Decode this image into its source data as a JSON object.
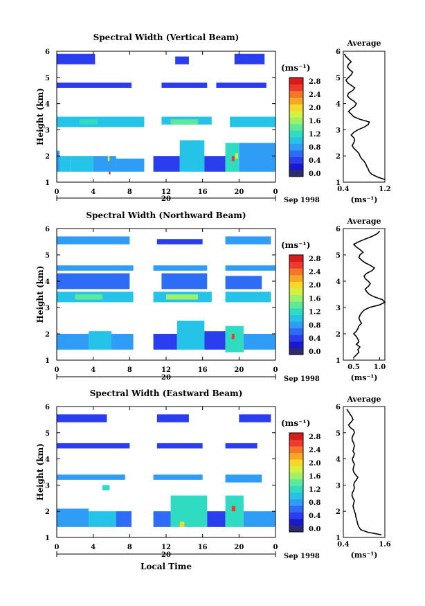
{
  "chart_data": [
    {
      "type": "heatmap",
      "title": "Spectral Width (Vertical Beam)",
      "ylabel": "Height (km)",
      "xlabel": "",
      "x_ticks": [
        "0",
        "4",
        "8",
        "12",
        "16",
        "20",
        "0"
      ],
      "y_ticks": [
        "1",
        "2",
        "3",
        "4",
        "5",
        "6"
      ],
      "xlim": [
        0,
        24
      ],
      "ylim": [
        1,
        6
      ],
      "date_day": "20",
      "date_month": "Sep 1998",
      "gap_hours": [
        9.6,
        10.6
      ],
      "cells": [
        {
          "t": [
            0,
            0.3
          ],
          "h": [
            1.4,
            2.2
          ],
          "v": 0.9
        },
        {
          "t": [
            0.3,
            1.5
          ],
          "h": [
            1.4,
            2.0
          ],
          "v": 1.0
        },
        {
          "t": [
            1.5,
            4.0
          ],
          "h": [
            1.4,
            2.0
          ],
          "v": 1.2
        },
        {
          "t": [
            4.0,
            6.5
          ],
          "h": [
            1.4,
            2.0
          ],
          "v": 0.9
        },
        {
          "t": [
            6.5,
            9.6
          ],
          "h": [
            1.4,
            1.9
          ],
          "v": 0.8
        },
        {
          "t": [
            5.6,
            5.8
          ],
          "h": [
            1.8,
            2.0
          ],
          "v": 1.8
        },
        {
          "t": [
            5.7,
            5.9
          ],
          "h": [
            1.3,
            1.4
          ],
          "v": 2.8
        },
        {
          "t": [
            10.6,
            13.5
          ],
          "h": [
            1.4,
            2.0
          ],
          "v": 0.6
        },
        {
          "t": [
            13.5,
            16.2
          ],
          "h": [
            1.4,
            2.6
          ],
          "v": 1.2
        },
        {
          "t": [
            16.2,
            18.5
          ],
          "h": [
            1.4,
            2.0
          ],
          "v": 0.5
        },
        {
          "t": [
            18.5,
            20.0
          ],
          "h": [
            1.4,
            2.5
          ],
          "v": 1.3
        },
        {
          "t": [
            20.0,
            24.0
          ],
          "h": [
            1.4,
            2.5
          ],
          "v": 0.9
        },
        {
          "t": [
            19.2,
            19.5
          ],
          "h": [
            1.8,
            2.0
          ],
          "v": 2.8
        },
        {
          "t": [
            19.6,
            19.9
          ],
          "h": [
            1.9,
            2.1
          ],
          "v": 1.8
        },
        {
          "t": [
            0,
            9.6
          ],
          "h": [
            3.1,
            3.5
          ],
          "v": 1.0
        },
        {
          "t": [
            2.5,
            4.5
          ],
          "h": [
            3.2,
            3.4
          ],
          "v": 1.4
        },
        {
          "t": [
            11.5,
            17.0
          ],
          "h": [
            3.2,
            3.5
          ],
          "v": 1.1
        },
        {
          "t": [
            12.5,
            15.5
          ],
          "h": [
            3.2,
            3.4
          ],
          "v": 1.5
        },
        {
          "t": [
            19.0,
            24.0
          ],
          "h": [
            3.1,
            3.5
          ],
          "v": 1.1
        },
        {
          "t": [
            0,
            8.2
          ],
          "h": [
            4.6,
            4.8
          ],
          "v": 0.6
        },
        {
          "t": [
            11.5,
            16.5
          ],
          "h": [
            4.6,
            4.8
          ],
          "v": 0.5
        },
        {
          "t": [
            17.5,
            23.0
          ],
          "h": [
            4.6,
            4.8
          ],
          "v": 0.6
        },
        {
          "t": [
            0,
            4.2
          ],
          "h": [
            5.5,
            5.9
          ],
          "v": 0.4
        },
        {
          "t": [
            13.0,
            14.5
          ],
          "h": [
            5.5,
            5.8
          ],
          "v": 0.4
        },
        {
          "t": [
            19.5,
            22.8
          ],
          "h": [
            5.5,
            5.9
          ],
          "v": 0.4
        }
      ],
      "average_profile": {
        "title": "Average",
        "xlabel": "(ms⁻¹)",
        "x_ticks": [
          "0.4",
          "1.2"
        ],
        "xlim": [
          0.4,
          1.2
        ],
        "y_ticks": [
          "1",
          "2",
          "3",
          "4",
          "5",
          "6"
        ],
        "height": [
          1.1,
          1.2,
          1.3,
          1.4,
          1.5,
          1.6,
          1.7,
          1.8,
          1.9,
          2.0,
          2.1,
          2.2,
          2.3,
          2.4,
          2.5,
          2.6,
          2.7,
          2.8,
          2.9,
          3.0,
          3.1,
          3.2,
          3.3,
          3.4,
          3.5,
          3.6,
          3.7,
          3.8,
          3.9,
          4.0,
          4.1,
          4.2,
          4.3,
          4.4,
          4.5,
          4.6,
          4.7,
          4.8,
          4.9,
          5.0,
          5.1,
          5.2,
          5.3,
          5.4,
          5.5,
          5.6,
          5.7,
          5.8,
          5.9
        ],
        "value": [
          1.25,
          1.05,
          0.95,
          0.9,
          0.88,
          0.85,
          0.83,
          0.8,
          0.75,
          0.72,
          0.7,
          0.65,
          0.6,
          0.57,
          0.6,
          0.62,
          0.6,
          0.55,
          0.6,
          0.68,
          0.8,
          0.88,
          0.9,
          0.72,
          0.6,
          0.55,
          0.5,
          0.55,
          0.62,
          0.65,
          0.6,
          0.52,
          0.48,
          0.5,
          0.58,
          0.62,
          0.55,
          0.48,
          0.45,
          0.5,
          0.55,
          0.58,
          0.52,
          0.48,
          0.5,
          0.55,
          0.5,
          0.45,
          0.42
        ]
      }
    },
    {
      "type": "heatmap",
      "title": "Spectral Width (Northward Beam)",
      "ylabel": "Height (km)",
      "xlabel": "",
      "x_ticks": [
        "0",
        "4",
        "8",
        "12",
        "16",
        "20",
        "0"
      ],
      "y_ticks": [
        "1",
        "2",
        "3",
        "4",
        "5",
        "6"
      ],
      "xlim": [
        0,
        24
      ],
      "ylim": [
        1,
        6
      ],
      "date_day": "20",
      "date_month": "Sep 1998",
      "gap_hours": [
        8.4,
        10.6
      ],
      "cells": [
        {
          "t": [
            0,
            3.5
          ],
          "h": [
            1.4,
            2.0
          ],
          "v": 0.9
        },
        {
          "t": [
            3.5,
            6.0
          ],
          "h": [
            1.4,
            2.1
          ],
          "v": 1.2
        },
        {
          "t": [
            6.0,
            8.4
          ],
          "h": [
            1.4,
            2.0
          ],
          "v": 0.9
        },
        {
          "t": [
            10.6,
            13.2
          ],
          "h": [
            1.4,
            2.0
          ],
          "v": 0.6
        },
        {
          "t": [
            13.2,
            16.2
          ],
          "h": [
            1.4,
            2.5
          ],
          "v": 1.2
        },
        {
          "t": [
            16.2,
            18.5
          ],
          "h": [
            1.4,
            2.1
          ],
          "v": 0.5
        },
        {
          "t": [
            18.5,
            20.5
          ],
          "h": [
            1.3,
            2.3
          ],
          "v": 1.4
        },
        {
          "t": [
            19.2,
            19.5
          ],
          "h": [
            1.8,
            2.0
          ],
          "v": 2.8
        },
        {
          "t": [
            20.5,
            24.0
          ],
          "h": [
            1.4,
            2.0
          ],
          "v": 0.9
        },
        {
          "t": [
            0,
            8.4
          ],
          "h": [
            3.2,
            3.6
          ],
          "v": 1.1
        },
        {
          "t": [
            2.0,
            5.0
          ],
          "h": [
            3.3,
            3.5
          ],
          "v": 1.5
        },
        {
          "t": [
            10.6,
            17.0
          ],
          "h": [
            3.2,
            3.6
          ],
          "v": 1.1
        },
        {
          "t": [
            12.0,
            15.5
          ],
          "h": [
            3.3,
            3.5
          ],
          "v": 1.6
        },
        {
          "t": [
            18.5,
            23.5
          ],
          "h": [
            3.2,
            3.6
          ],
          "v": 1.1
        },
        {
          "t": [
            0,
            8.0
          ],
          "h": [
            3.7,
            4.3
          ],
          "v": 0.7
        },
        {
          "t": [
            11.5,
            16.5
          ],
          "h": [
            3.7,
            4.3
          ],
          "v": 0.7
        },
        {
          "t": [
            18.5,
            22.5
          ],
          "h": [
            3.7,
            4.2
          ],
          "v": 0.7
        },
        {
          "t": [
            0,
            8.4
          ],
          "h": [
            4.4,
            4.6
          ],
          "v": 0.9
        },
        {
          "t": [
            10.6,
            16.5
          ],
          "h": [
            4.4,
            4.6
          ],
          "v": 0.8
        },
        {
          "t": [
            18.5,
            24.0
          ],
          "h": [
            4.4,
            4.6
          ],
          "v": 0.9
        },
        {
          "t": [
            0,
            8.0
          ],
          "h": [
            5.4,
            5.7
          ],
          "v": 0.8
        },
        {
          "t": [
            11.0,
            16.0
          ],
          "h": [
            5.4,
            5.6
          ],
          "v": 0.6
        },
        {
          "t": [
            18.5,
            23.5
          ],
          "h": [
            5.4,
            5.7
          ],
          "v": 0.8
        }
      ],
      "average_profile": {
        "title": "Average",
        "xlabel": "(ms⁻¹)",
        "x_ticks": [
          "0.5",
          "1.0"
        ],
        "xlim": [
          0.3,
          1.1
        ],
        "y_ticks": [
          "1",
          "2",
          "3",
          "4",
          "5",
          "6"
        ],
        "height": [
          1.1,
          1.2,
          1.3,
          1.4,
          1.5,
          1.6,
          1.7,
          1.8,
          1.9,
          2.0,
          2.1,
          2.2,
          2.3,
          2.4,
          2.5,
          2.6,
          2.7,
          2.8,
          2.9,
          3.0,
          3.1,
          3.2,
          3.3,
          3.4,
          3.5,
          3.6,
          3.7,
          3.8,
          3.9,
          4.0,
          4.1,
          4.2,
          4.3,
          4.4,
          4.5,
          4.6,
          4.7,
          4.8,
          4.9,
          5.0,
          5.1,
          5.2,
          5.3,
          5.4,
          5.5,
          5.6,
          5.7,
          5.8,
          5.9
        ],
        "value": [
          0.5,
          0.55,
          0.6,
          0.58,
          0.62,
          0.55,
          0.6,
          0.58,
          0.55,
          0.5,
          0.55,
          0.58,
          0.6,
          0.65,
          0.62,
          0.6,
          0.62,
          0.65,
          0.7,
          0.8,
          1.0,
          1.1,
          1.05,
          0.9,
          0.8,
          0.75,
          0.72,
          0.78,
          0.82,
          0.78,
          0.72,
          0.7,
          0.75,
          0.85,
          0.9,
          0.82,
          0.72,
          0.65,
          0.6,
          0.62,
          0.68,
          0.62,
          0.55,
          0.5,
          0.6,
          0.72,
          0.85,
          0.95,
          1.0
        ]
      }
    },
    {
      "type": "heatmap",
      "title": "Spectral Width (Eastward Beam)",
      "ylabel": "Height (km)",
      "xlabel": "Local Time",
      "x_ticks": [
        "0",
        "4",
        "8",
        "12",
        "16",
        "20",
        "0"
      ],
      "y_ticks": [
        "1",
        "2",
        "3",
        "4",
        "5",
        "6"
      ],
      "xlim": [
        0,
        24
      ],
      "ylim": [
        1,
        6
      ],
      "date_day": "20",
      "date_month": "Sep 1998",
      "gap_hours": [
        8.2,
        10.6
      ],
      "cells": [
        {
          "t": [
            0,
            3.5
          ],
          "h": [
            1.4,
            2.1
          ],
          "v": 0.9
        },
        {
          "t": [
            3.5,
            6.5
          ],
          "h": [
            1.4,
            2.0
          ],
          "v": 1.1
        },
        {
          "t": [
            6.5,
            8.2
          ],
          "h": [
            1.4,
            2.0
          ],
          "v": 0.7
        },
        {
          "t": [
            10.6,
            12.5
          ],
          "h": [
            1.4,
            2.0
          ],
          "v": 0.7
        },
        {
          "t": [
            12.5,
            16.5
          ],
          "h": [
            1.4,
            2.6
          ],
          "v": 1.3
        },
        {
          "t": [
            13.5,
            14.0
          ],
          "h": [
            1.4,
            1.6
          ],
          "v": 2.0
        },
        {
          "t": [
            16.5,
            18.5
          ],
          "h": [
            1.4,
            2.0
          ],
          "v": 0.5
        },
        {
          "t": [
            18.5,
            20.5
          ],
          "h": [
            1.4,
            2.6
          ],
          "v": 1.4
        },
        {
          "t": [
            19.2,
            19.6
          ],
          "h": [
            2.0,
            2.2
          ],
          "v": 2.8
        },
        {
          "t": [
            20.5,
            24.0
          ],
          "h": [
            1.4,
            2.0
          ],
          "v": 0.9
        },
        {
          "t": [
            0,
            7.5
          ],
          "h": [
            3.2,
            3.4
          ],
          "v": 0.8
        },
        {
          "t": [
            10.6,
            16.0
          ],
          "h": [
            3.2,
            3.4
          ],
          "v": 0.8
        },
        {
          "t": [
            18.5,
            22.5
          ],
          "h": [
            3.1,
            3.4
          ],
          "v": 0.9
        },
        {
          "t": [
            5.0,
            5.8
          ],
          "h": [
            2.8,
            3.0
          ],
          "v": 1.4
        },
        {
          "t": [
            0,
            8.0
          ],
          "h": [
            4.4,
            4.6
          ],
          "v": 0.6
        },
        {
          "t": [
            11.0,
            16.0
          ],
          "h": [
            4.4,
            4.6
          ],
          "v": 0.5
        },
        {
          "t": [
            18.5,
            22.0
          ],
          "h": [
            4.4,
            4.6
          ],
          "v": 0.6
        },
        {
          "t": [
            0,
            5.5
          ],
          "h": [
            5.4,
            5.7
          ],
          "v": 0.5
        },
        {
          "t": [
            11.0,
            14.5
          ],
          "h": [
            5.4,
            5.7
          ],
          "v": 0.5
        },
        {
          "t": [
            20.0,
            23.5
          ],
          "h": [
            5.4,
            5.7
          ],
          "v": 0.5
        }
      ],
      "average_profile": {
        "title": "Average",
        "xlabel": "(ms⁻¹)",
        "x_ticks": [
          "0.4",
          "1.6"
        ],
        "xlim": [
          0.4,
          1.6
        ],
        "y_ticks": [
          "1",
          "2",
          "3",
          "4",
          "5",
          "6"
        ],
        "height": [
          1.1,
          1.2,
          1.3,
          1.4,
          1.5,
          1.6,
          1.7,
          1.8,
          1.9,
          2.0,
          2.1,
          2.2,
          2.3,
          2.4,
          2.5,
          2.6,
          2.7,
          2.8,
          2.9,
          3.0,
          3.1,
          3.2,
          3.3,
          3.4,
          3.5,
          3.6,
          3.7,
          3.8,
          3.9,
          4.0,
          4.1,
          4.2,
          4.3,
          4.4,
          4.5,
          4.6,
          4.7,
          4.8,
          4.9,
          5.0,
          5.1,
          5.2,
          5.3,
          5.4,
          5.5,
          5.6,
          5.7,
          5.8,
          5.9
        ],
        "value": [
          1.5,
          1.1,
          0.9,
          0.85,
          0.82,
          0.8,
          0.78,
          0.76,
          0.75,
          0.72,
          0.7,
          0.68,
          0.7,
          0.72,
          0.68,
          0.65,
          0.66,
          0.7,
          0.72,
          0.7,
          0.72,
          0.78,
          0.82,
          0.75,
          0.7,
          0.68,
          0.7,
          0.72,
          0.68,
          0.66,
          0.7,
          0.72,
          0.68,
          0.7,
          0.72,
          0.7,
          0.66,
          0.65,
          0.68,
          0.72,
          0.7,
          0.6,
          0.55,
          0.62,
          0.68,
          0.65,
          0.6,
          0.55,
          0.5
        ]
      }
    }
  ],
  "colorbar": {
    "unit": "(ms⁻¹)",
    "ticks": [
      "0.0",
      "0.4",
      "0.8",
      "1.2",
      "1.6",
      "2.0",
      "2.4",
      "2.8"
    ],
    "min": 0.0,
    "max": 3.0,
    "colors": [
      "#2b2b6e",
      "#1a1acc",
      "#2a3ef0",
      "#2e6cf5",
      "#2f9cf5",
      "#25c3e8",
      "#2fdcc2",
      "#5ee89a",
      "#9cf06a",
      "#d6f03e",
      "#f5d82a",
      "#f5a823",
      "#f5762a",
      "#ec3a2c",
      "#d81b1b"
    ]
  }
}
